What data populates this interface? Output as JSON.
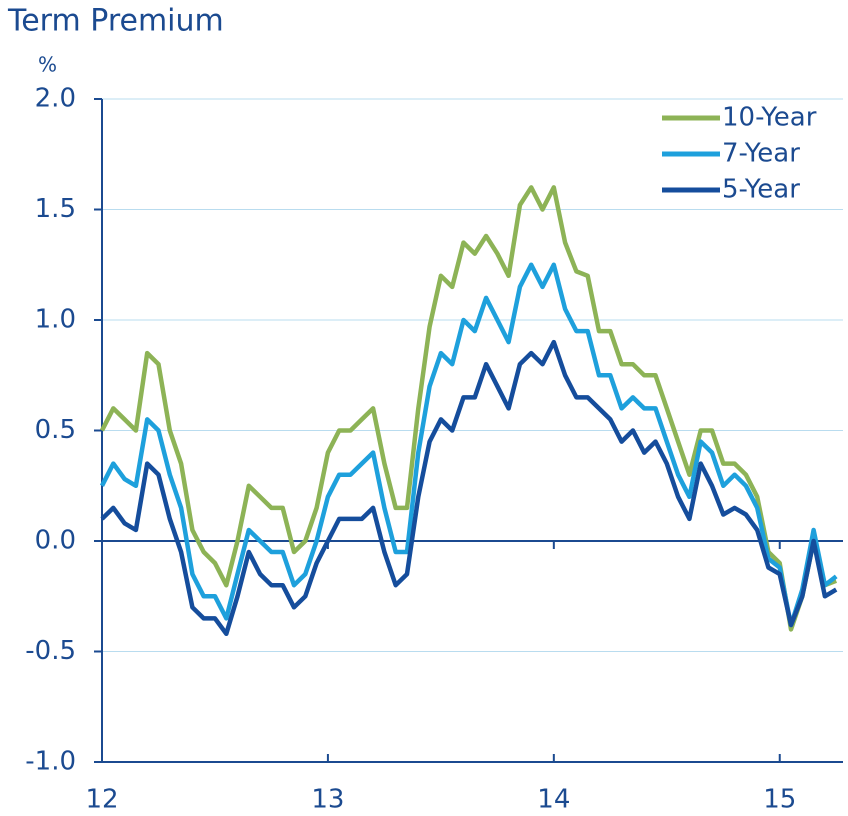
{
  "chart_data": {
    "type": "line",
    "title": "Term Premium",
    "ylabel": "%",
    "x": [
      12.0,
      12.05,
      12.1,
      12.15,
      12.2,
      12.25,
      12.3,
      12.35,
      12.4,
      12.45,
      12.5,
      12.55,
      12.6,
      12.65,
      12.7,
      12.75,
      12.8,
      12.85,
      12.9,
      12.95,
      13.0,
      13.05,
      13.1,
      13.15,
      13.2,
      13.25,
      13.3,
      13.35,
      13.4,
      13.45,
      13.5,
      13.55,
      13.6,
      13.65,
      13.7,
      13.75,
      13.8,
      13.85,
      13.9,
      13.95,
      14.0,
      14.05,
      14.1,
      14.15,
      14.2,
      14.25,
      14.3,
      14.35,
      14.4,
      14.45,
      14.5,
      14.55,
      14.6,
      14.65,
      14.7,
      14.75,
      14.8,
      14.85,
      14.9,
      14.95,
      15.0,
      15.05,
      15.1,
      15.15,
      15.2,
      15.25
    ],
    "series": [
      {
        "name": "10-Year",
        "color": "#8db356",
        "values": [
          0.5,
          0.6,
          0.55,
          0.5,
          0.85,
          0.8,
          0.5,
          0.35,
          0.05,
          -0.05,
          -0.1,
          -0.2,
          0.0,
          0.25,
          0.2,
          0.15,
          0.15,
          -0.05,
          0.0,
          0.15,
          0.4,
          0.5,
          0.5,
          0.55,
          0.6,
          0.35,
          0.15,
          0.15,
          0.6,
          0.97,
          1.2,
          1.15,
          1.35,
          1.3,
          1.38,
          1.3,
          1.2,
          1.52,
          1.6,
          1.5,
          1.6,
          1.35,
          1.22,
          1.2,
          0.95,
          0.95,
          0.8,
          0.8,
          0.75,
          0.75,
          0.6,
          0.45,
          0.3,
          0.5,
          0.5,
          0.35,
          0.35,
          0.3,
          0.2,
          -0.05,
          -0.1,
          -0.4,
          -0.25,
          0.0,
          -0.2,
          -0.18
        ]
      },
      {
        "name": "7-Year",
        "color": "#1ea0dc",
        "values": [
          0.25,
          0.35,
          0.28,
          0.25,
          0.55,
          0.5,
          0.3,
          0.15,
          -0.15,
          -0.25,
          -0.25,
          -0.35,
          -0.15,
          0.05,
          0.0,
          -0.05,
          -0.05,
          -0.2,
          -0.15,
          0.0,
          0.2,
          0.3,
          0.3,
          0.35,
          0.4,
          0.15,
          -0.05,
          -0.05,
          0.4,
          0.7,
          0.85,
          0.8,
          1.0,
          0.95,
          1.1,
          1.0,
          0.9,
          1.15,
          1.25,
          1.15,
          1.25,
          1.05,
          0.95,
          0.95,
          0.75,
          0.75,
          0.6,
          0.65,
          0.6,
          0.6,
          0.45,
          0.3,
          0.2,
          0.45,
          0.4,
          0.25,
          0.3,
          0.25,
          0.15,
          -0.08,
          -0.12,
          -0.38,
          -0.22,
          0.05,
          -0.2,
          -0.16
        ]
      },
      {
        "name": "5-Year",
        "color": "#154d9c",
        "values": [
          0.1,
          0.15,
          0.08,
          0.05,
          0.35,
          0.3,
          0.1,
          -0.05,
          -0.3,
          -0.35,
          -0.35,
          -0.42,
          -0.25,
          -0.05,
          -0.15,
          -0.2,
          -0.2,
          -0.3,
          -0.25,
          -0.1,
          0.0,
          0.1,
          0.1,
          0.1,
          0.15,
          -0.05,
          -0.2,
          -0.15,
          0.2,
          0.45,
          0.55,
          0.5,
          0.65,
          0.65,
          0.8,
          0.7,
          0.6,
          0.8,
          0.85,
          0.8,
          0.9,
          0.75,
          0.65,
          0.65,
          0.6,
          0.55,
          0.45,
          0.5,
          0.4,
          0.45,
          0.35,
          0.2,
          0.1,
          0.35,
          0.25,
          0.12,
          0.15,
          0.12,
          0.05,
          -0.12,
          -0.15,
          -0.38,
          -0.25,
          0.0,
          -0.25,
          -0.22
        ]
      }
    ],
    "xlim": [
      12,
      15.28
    ],
    "xticks": [
      12,
      13,
      14,
      15
    ],
    "ylim": [
      -1,
      2
    ],
    "yticks": [
      {
        "value": -1,
        "label": "-1.0"
      },
      {
        "value": -0.5,
        "label": "-0.5"
      },
      {
        "value": 0,
        "label": "0.0"
      },
      {
        "value": 0.5,
        "label": "0.5"
      },
      {
        "value": 1,
        "label": "1.0"
      },
      {
        "value": 1.5,
        "label": "1.5"
      },
      {
        "value": 2,
        "label": "2.0"
      }
    ],
    "grid": true,
    "legend": "upper right"
  }
}
